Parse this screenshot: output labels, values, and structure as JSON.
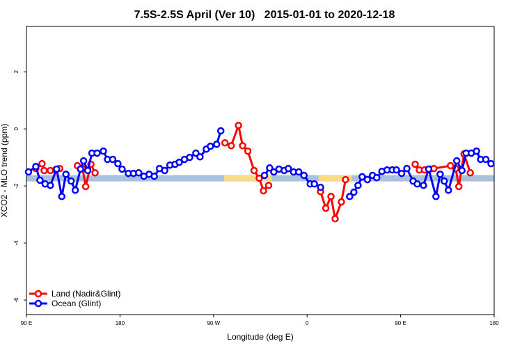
{
  "chart_data": {
    "type": "line",
    "title": "7.5S-2.5S April (Ver 10)   2015-01-01 to 2020-12-18",
    "x_label": "Longitude (deg E)",
    "y_label": "XCO2 - MLO trend (ppm)",
    "xlim": [
      90,
      540
    ],
    "ylim": [
      -6.51,
      3.59
    ],
    "xticks": [
      {
        "value": 90,
        "label": "90 E"
      },
      180,
      {
        "value": 270,
        "label": "90 W"
      },
      {
        "value": 360,
        "label": "0"
      },
      {
        "value": 450,
        "label": "90 E"
      },
      {
        "value": 540,
        "label": "180"
      }
    ],
    "yticks": [
      -6,
      -4,
      -2,
      0,
      2
    ],
    "legend": "bottom-left",
    "band": {
      "y": -1.73,
      "segments": [
        {
          "from": 90,
          "to": 540,
          "color": "#a9c0de"
        },
        {
          "from": 280,
          "to": 326,
          "color": "#f9d98a"
        },
        {
          "from": 371,
          "to": 403,
          "color": "#f9d98a"
        }
      ]
    },
    "series": [
      {
        "name": "Land (Nadir&Glint)",
        "color": "#ff0000",
        "x": [
          99,
          105,
          107,
          113,
          118,
          122,
          130,
          139,
          144,
          147,
          152,
          156,
          200,
          281,
          287,
          294,
          298,
          303,
          309,
          314,
          318,
          323,
          350,
          373,
          378,
          383,
          387,
          393,
          397,
          430,
          464,
          468,
          473,
          478,
          482,
          498,
          503,
          506,
          511,
          517
        ],
        "values": [
          -1.39,
          -1.22,
          -1.46,
          -1.46,
          -1.44,
          -1.39,
          null,
          -1.29,
          -1.39,
          -2.02,
          -1.24,
          -1.54,
          null,
          -0.49,
          -0.59,
          0.12,
          -0.59,
          -0.78,
          -1.46,
          -1.73,
          -2.17,
          -1.98,
          null,
          -2.2,
          -2.78,
          -2.37,
          -3.15,
          -2.56,
          -1.78,
          null,
          -1.24,
          -1.44,
          -1.44,
          -1.41,
          -1.39,
          -1.29,
          -1.39,
          -2.02,
          -0.88,
          -1.54
        ]
      },
      {
        "name": "Ocean (Glint)",
        "color": "#0000ff",
        "x": [
          92,
          99,
          103,
          108,
          113,
          119,
          124,
          128,
          133,
          137,
          142,
          145,
          149,
          153,
          158,
          164,
          168,
          173,
          178,
          182,
          188,
          193,
          198,
          203,
          208,
          213,
          218,
          223,
          228,
          233,
          237,
          242,
          247,
          253,
          257,
          263,
          267,
          273,
          277,
          298,
          319,
          324,
          328,
          333,
          338,
          342,
          347,
          352,
          357,
          363,
          367,
          373,
          387,
          401,
          405,
          409,
          413,
          418,
          423,
          427,
          432,
          437,
          442,
          446,
          451,
          456,
          462,
          466,
          472,
          477,
          484,
          488,
          492,
          496,
          504,
          509,
          513,
          518,
          523,
          527,
          532,
          537
        ],
        "values": [
          -1.51,
          -1.32,
          -1.8,
          -1.93,
          -1.98,
          -1.41,
          -2.37,
          -1.59,
          -1.83,
          -2.15,
          -1.41,
          -1.12,
          -1.46,
          -0.85,
          -0.85,
          -0.78,
          -1.07,
          -1.07,
          -1.22,
          -1.41,
          -1.56,
          -1.56,
          -1.54,
          -1.66,
          -1.59,
          -1.66,
          -1.39,
          -1.46,
          -1.27,
          -1.24,
          -1.17,
          -1.07,
          -1.0,
          -0.85,
          -0.98,
          -0.71,
          -0.61,
          -0.54,
          -0.07,
          null,
          -1.63,
          -1.37,
          -1.51,
          -1.41,
          -1.46,
          -1.39,
          -1.51,
          -1.51,
          -1.63,
          -1.93,
          -1.93,
          -2.05,
          null,
          -2.37,
          -2.22,
          -1.98,
          -1.68,
          -1.78,
          -1.63,
          -1.71,
          -1.49,
          -1.44,
          -1.44,
          -1.44,
          -1.56,
          -1.39,
          -1.83,
          -1.93,
          -1.98,
          -1.41,
          -2.37,
          -1.59,
          -1.83,
          -2.15,
          -1.12,
          -1.46,
          -0.85,
          -0.85,
          -0.78,
          -1.07,
          -1.07,
          -1.22
        ]
      }
    ]
  }
}
